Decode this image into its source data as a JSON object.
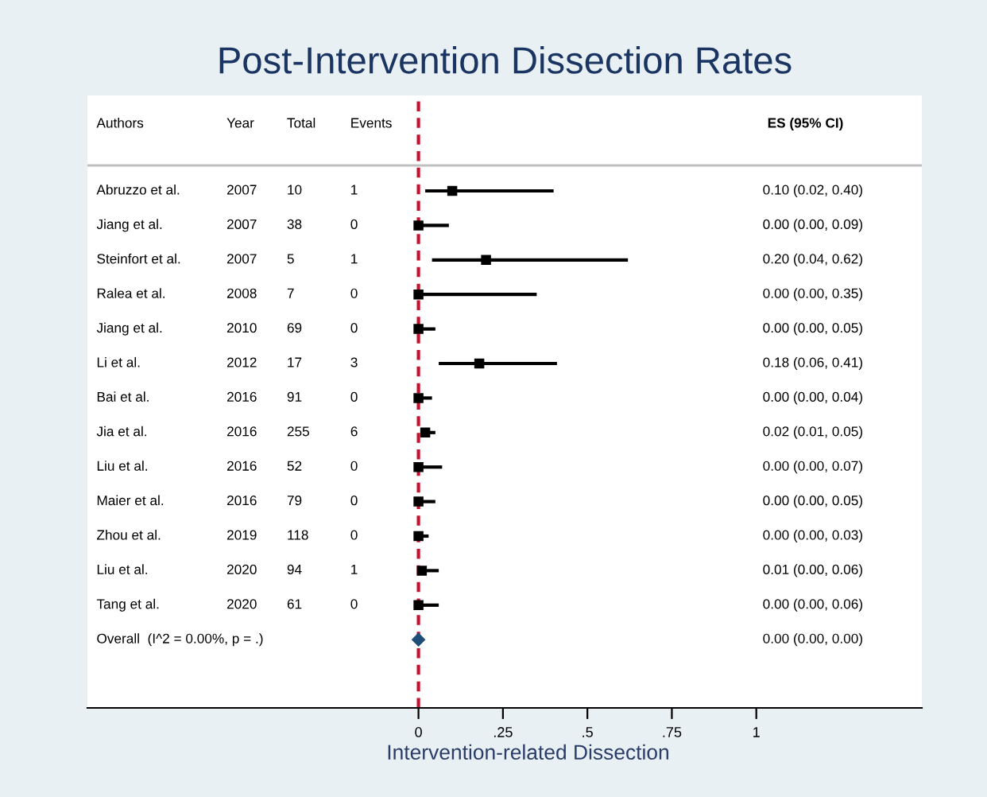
{
  "chart_data": {
    "type": "scatter",
    "orientation": "horizontal",
    "title": "Post-Intervention Dissection Rates",
    "xlabel": "Intervention-related Dissection",
    "categories": [
      "Abruzzo et al.",
      "Jiang et al.",
      "Steinfort et al.",
      "Ralea et al.",
      "Jiang et al.",
      "Li et al.",
      "Bai et al.",
      "Jia et al.",
      "Liu et al.",
      "Maier et al.",
      "Zhou et al.",
      "Liu et al.",
      "Tang et al.",
      "Overall  (I^2 = 0.00%, p = .)"
    ],
    "series": [
      {
        "color": "#000000",
        "marker": "square",
        "values": [
          0.1,
          0.0,
          0.2,
          0.0,
          0.0,
          0.18,
          0.0,
          0.02,
          0.0,
          0.0,
          0.0,
          0.01,
          0.0,
          null
        ],
        "errors": [
          [
            0.02,
            0.4
          ],
          [
            0.0,
            0.09
          ],
          [
            0.04,
            0.62
          ],
          [
            0.0,
            0.35
          ],
          [
            0.0,
            0.05
          ],
          [
            0.06,
            0.41
          ],
          [
            0.0,
            0.04
          ],
          [
            0.01,
            0.05
          ],
          [
            0.0,
            0.07
          ],
          [
            0.0,
            0.05
          ],
          [
            0.0,
            0.03
          ],
          [
            0.0,
            0.06
          ],
          [
            0.0,
            0.06
          ],
          null
        ]
      },
      {
        "color": "#1f4e79",
        "marker": "diamond",
        "values": [
          null,
          null,
          null,
          null,
          null,
          null,
          null,
          null,
          null,
          null,
          null,
          null,
          null,
          0.0
        ],
        "errors": [
          null,
          null,
          null,
          null,
          null,
          null,
          null,
          null,
          null,
          null,
          null,
          null,
          null,
          [
            0.0,
            0.0
          ]
        ]
      }
    ],
    "xlim": [
      -0.98,
      1.49
    ],
    "xticks": [
      0,
      {
        "value": 0.25,
        "label": ".25"
      },
      {
        "value": 0.5,
        "label": ".5"
      },
      {
        "value": 0.75,
        "label": ".75"
      },
      1
    ],
    "ref_lines": [
      {
        "axis": "x",
        "value": 0,
        "color": "#c8102e",
        "line_style": "dashed"
      }
    ],
    "grid": false,
    "tick_labels": "x",
    "annotations": [
      "Authors",
      "Year",
      "Total",
      "Events",
      "ES (95% CI)",
      "2007",
      "10",
      "1",
      "2007",
      "38",
      "0",
      "2007",
      "5",
      "1",
      "2008",
      "7",
      "0",
      "2010",
      "69",
      "0",
      "2012",
      "17",
      "3",
      "2016",
      "91",
      "0",
      "2016",
      "255",
      "6",
      "2016",
      "52",
      "0",
      "2016",
      "79",
      "0",
      "2019",
      "118",
      "0",
      "2020",
      "94",
      "1",
      "2020",
      "61",
      "0",
      "0.10 (0.02, 0.40)",
      "0.00 (0.00, 0.09)",
      "0.20 (0.04, 0.62)",
      "0.00 (0.00, 0.35)",
      "0.00 (0.00, 0.05)",
      "0.18 (0.06, 0.41)",
      "0.00 (0.00, 0.04)",
      "0.02 (0.01, 0.05)",
      "0.00 (0.00, 0.07)",
      "0.00 (0.00, 0.05)",
      "0.00 (0.00, 0.03)",
      "0.01 (0.00, 0.06)",
      "0.00 (0.00, 0.06)",
      "0.00 (0.00, 0.00)"
    ]
  }
}
